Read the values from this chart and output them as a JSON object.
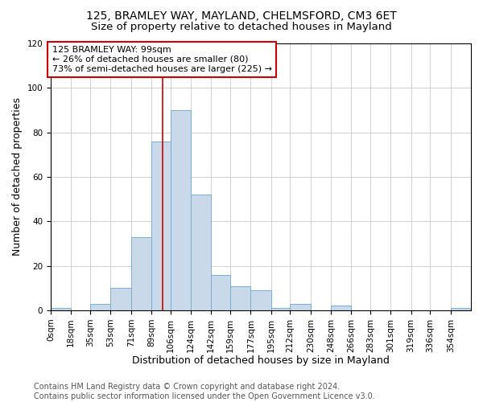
{
  "title1": "125, BRAMLEY WAY, MAYLAND, CHELMSFORD, CM3 6ET",
  "title2": "Size of property relative to detached houses in Mayland",
  "xlabel": "Distribution of detached houses by size in Mayland",
  "ylabel": "Number of detached properties",
  "footer1": "Contains HM Land Registry data © Crown copyright and database right 2024.",
  "footer2": "Contains public sector information licensed under the Open Government Licence v3.0.",
  "annotation_line1": "125 BRAMLEY WAY: 99sqm",
  "annotation_line2": "← 26% of detached houses are smaller (80)",
  "annotation_line3": "73% of semi-detached houses are larger (225) →",
  "bar_labels": [
    "0sqm",
    "18sqm",
    "35sqm",
    "53sqm",
    "71sqm",
    "89sqm",
    "106sqm",
    "124sqm",
    "142sqm",
    "159sqm",
    "177sqm",
    "195sqm",
    "212sqm",
    "230sqm",
    "248sqm",
    "266sqm",
    "283sqm",
    "301sqm",
    "319sqm",
    "336sqm",
    "354sqm"
  ],
  "bar_values": [
    1,
    0,
    3,
    10,
    33,
    76,
    90,
    52,
    16,
    11,
    9,
    1,
    3,
    0,
    2,
    0,
    0,
    0,
    0,
    0,
    1
  ],
  "bar_color": "#c9d9ea",
  "bar_edge_color": "#7aaed0",
  "ylim": [
    0,
    120
  ],
  "yticks": [
    0,
    20,
    40,
    60,
    80,
    100,
    120
  ],
  "property_sqm": 99,
  "bin_edges": [
    0,
    18,
    35,
    53,
    71,
    89,
    106,
    124,
    142,
    159,
    177,
    195,
    212,
    230,
    248,
    266,
    283,
    301,
    319,
    336,
    354,
    372
  ],
  "background_color": "#ffffff",
  "grid_color": "#d0d0d0",
  "annotation_box_color": "#ffffff",
  "annotation_border_color": "#cc0000",
  "ref_line_color": "#cc0000",
  "title1_fontsize": 10,
  "title2_fontsize": 9.5,
  "axis_label_fontsize": 9,
  "tick_fontsize": 7.5,
  "annotation_fontsize": 8,
  "footer_fontsize": 7
}
